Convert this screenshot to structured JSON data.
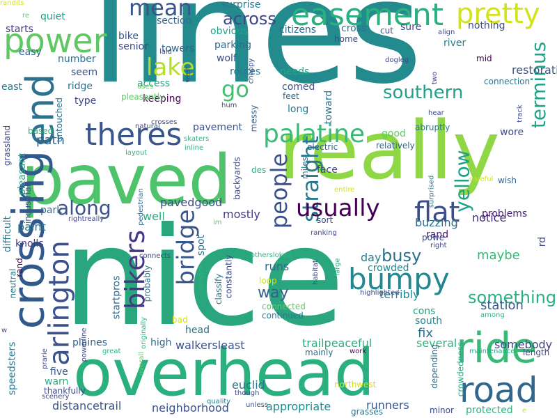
{
  "words": [
    {
      "text": "lines",
      "color": "#238a8d"
    },
    {
      "text": "nice",
      "color": "#2aa67e"
    },
    {
      "text": "really",
      "color": "#8fd744"
    },
    {
      "text": "paved",
      "color": "#4ec36b"
    },
    {
      "text": "overhead",
      "color": "#2ab07f"
    },
    {
      "text": "crossing",
      "color": "#31598c"
    },
    {
      "text": "easement",
      "color": "#2ab07f"
    },
    {
      "text": "power",
      "color": "#5ec962"
    },
    {
      "text": "pretty",
      "color": "#d2e21b"
    },
    {
      "text": "end",
      "color": "#2c718e"
    },
    {
      "text": "ride",
      "color": "#3aba76"
    },
    {
      "text": "road",
      "color": "#31668e"
    },
    {
      "text": "theres",
      "color": "#3a548c"
    },
    {
      "text": "bumpy",
      "color": "#24868e"
    },
    {
      "text": "flat",
      "color": "#3d4d8a"
    },
    {
      "text": "palatine",
      "color": "#3aba76"
    },
    {
      "text": "people",
      "color": "#3b518b"
    },
    {
      "text": "bridge",
      "color": "#39568c"
    },
    {
      "text": "bikers",
      "color": "#453781"
    },
    {
      "text": "arlington",
      "color": "#3b518b"
    },
    {
      "text": "straight",
      "color": "#2a788e"
    },
    {
      "text": "lake",
      "color": "#b5de2b"
    },
    {
      "text": "mean",
      "color": "#39568c"
    },
    {
      "text": "southern",
      "color": "#1fa188"
    },
    {
      "text": "terminus",
      "color": "#20a386"
    },
    {
      "text": "usually",
      "color": "#440154"
    },
    {
      "text": "along",
      "color": "#3b528b"
    },
    {
      "text": "go",
      "color": "#44bf70"
    },
    {
      "text": "across",
      "color": "#3e4989"
    },
    {
      "text": "yellow",
      "color": "#1fa088"
    },
    {
      "text": "something",
      "color": "#2ab07f"
    },
    {
      "text": "busy",
      "color": "#2d708e"
    },
    {
      "text": "way",
      "color": "#355f8d"
    },
    {
      "text": "paint",
      "color": "#2a778e"
    },
    {
      "text": "path",
      "color": "#34618d"
    },
    {
      "text": "well",
      "color": "#29af7f"
    },
    {
      "text": "maybe",
      "color": "#37b878"
    },
    {
      "text": "fix",
      "color": "#2c728e"
    },
    {
      "text": "station",
      "color": "#365c8d"
    },
    {
      "text": "pavedgood",
      "color": "#3e4989"
    },
    {
      "text": "mostly",
      "color": "#443983"
    },
    {
      "text": "notice",
      "color": "#472d7b"
    },
    {
      "text": "problems",
      "color": "#482173"
    },
    {
      "text": "buzzing",
      "color": "#2e6e8e"
    },
    {
      "text": "rand",
      "color": "#481b6d"
    },
    {
      "text": "day",
      "color": "#277f8e"
    },
    {
      "text": "runs",
      "color": "#31688e"
    },
    {
      "text": "crowded",
      "color": "#24868e"
    },
    {
      "text": "terribly",
      "color": "#23898e"
    },
    {
      "text": "cons",
      "color": "#20a486"
    },
    {
      "text": "south",
      "color": "#26828e"
    },
    {
      "text": "several",
      "color": "#2fb47c"
    },
    {
      "text": "trailpeaceful",
      "color": "#29af7f"
    },
    {
      "text": "somebody",
      "color": "#404688"
    },
    {
      "text": "walkersleast",
      "color": "#3b528b"
    },
    {
      "text": "neighborhood",
      "color": "#3b528b"
    },
    {
      "text": "appropriate",
      "color": "#238a8d"
    },
    {
      "text": "distancetrail",
      "color": "#39558c"
    },
    {
      "text": "runners",
      "color": "#39568c"
    },
    {
      "text": "euclid",
      "color": "#2c718e"
    },
    {
      "text": "plaines",
      "color": "#33638d"
    },
    {
      "text": "high",
      "color": "#31688e"
    },
    {
      "text": "head",
      "color": "#2c728e"
    },
    {
      "text": "five",
      "color": "#3a548c"
    },
    {
      "text": "warn",
      "color": "#29af7f"
    },
    {
      "text": "speedsters",
      "color": "#2a788e"
    },
    {
      "text": "startpros",
      "color": "#31688e"
    },
    {
      "text": "knolls",
      "color": "#453882"
    },
    {
      "text": "park",
      "color": "#31688e"
    },
    {
      "text": "difficult",
      "color": "#2a788e"
    },
    {
      "text": "pleasant",
      "color": "#22a884"
    },
    {
      "text": "industrial",
      "color": "#3b518b"
    },
    {
      "text": "grassland",
      "color": "#3e4989"
    },
    {
      "text": "east",
      "color": "#2c728e"
    },
    {
      "text": "easy",
      "color": "#33638d"
    },
    {
      "text": "starts",
      "color": "#443983"
    },
    {
      "text": "quiet",
      "color": "#1fa088"
    },
    {
      "text": "number",
      "color": "#2d708e"
    },
    {
      "text": "seem",
      "color": "#3b518b"
    },
    {
      "text": "ridge",
      "color": "#2c728e"
    },
    {
      "text": "type",
      "color": "#404688"
    },
    {
      "text": "untouched",
      "color": "#2d708e"
    },
    {
      "text": "bike",
      "color": "#39568c"
    },
    {
      "text": "senior",
      "color": "#3e4989"
    },
    {
      "text": "towers",
      "color": "#33638d"
    },
    {
      "text": "section",
      "color": "#31688e"
    },
    {
      "text": "surprise",
      "color": "#2a788e"
    },
    {
      "text": "obvious",
      "color": "#20a486"
    },
    {
      "text": "parking",
      "color": "#31688e"
    },
    {
      "text": "wolf",
      "color": "#3e4989"
    },
    {
      "text": "routes",
      "color": "#2a788e"
    },
    {
      "text": "access",
      "color": "#22a884"
    },
    {
      "text": "keeping",
      "color": "#440154"
    },
    {
      "text": "pavement",
      "color": "#3b528b"
    },
    {
      "text": "citizens",
      "color": "#31688e"
    },
    {
      "text": "cross",
      "color": "#2c728e"
    },
    {
      "text": "cut",
      "color": "#3e4989"
    },
    {
      "text": "sure",
      "color": "#3e4989"
    },
    {
      "text": "nothing",
      "color": "#3e4989"
    },
    {
      "text": "needs",
      "color": "#22a884"
    },
    {
      "text": "comed",
      "color": "#3b528b"
    },
    {
      "text": "toward",
      "color": "#2c728e"
    },
    {
      "text": "long",
      "color": "#2a788e"
    },
    {
      "text": "feet",
      "color": "#31688e"
    },
    {
      "text": "good",
      "color": "#5ec962"
    },
    {
      "text": "abruptly",
      "color": "#2a788e"
    },
    {
      "text": "relatively",
      "color": "#33638d"
    },
    {
      "text": "electric",
      "color": "#33638d"
    },
    {
      "text": "miles",
      "color": "#2a788e"
    },
    {
      "text": "face",
      "color": "#3e4989"
    },
    {
      "text": "wish",
      "color": "#33638d"
    },
    {
      "text": "wore",
      "color": "#3e4989"
    },
    {
      "text": "sort",
      "color": "#3e4989"
    },
    {
      "text": "restoration",
      "color": "#3b528b"
    },
    {
      "text": "mid",
      "color": "#440154"
    },
    {
      "text": "connection",
      "color": "#2c728e"
    },
    {
      "text": "home",
      "color": "#3e4989"
    },
    {
      "text": "river",
      "color": "#2a788e"
    },
    {
      "text": "des",
      "color": "#2fb47c"
    },
    {
      "text": "messy",
      "color": "#33638d"
    },
    {
      "text": "backyards",
      "color": "#3e4989"
    },
    {
      "text": "spot",
      "color": "#2c728e"
    },
    {
      "text": "classify",
      "color": "#2a788e"
    },
    {
      "text": "probably",
      "color": "#2a788e"
    },
    {
      "text": "constantly",
      "color": "#3e4989"
    },
    {
      "text": "connected",
      "color": "#5ec962"
    },
    {
      "text": "large",
      "color": "#2fb47c"
    },
    {
      "text": "continued",
      "color": "#2a788e"
    },
    {
      "text": "bad",
      "color": "#d2e21b"
    },
    {
      "text": "loop",
      "color": "#d2e21b"
    },
    {
      "text": "rd",
      "color": "#3e4989"
    },
    {
      "text": "highlighted",
      "color": "#3e4989"
    },
    {
      "text": "crowdedness",
      "color": "#22a884"
    },
    {
      "text": "depending",
      "color": "#2c728e"
    },
    {
      "text": "protected",
      "color": "#2fb47c"
    },
    {
      "text": "minor",
      "color": "#3e4989"
    },
    {
      "text": "northwest",
      "color": "#d2e21b"
    },
    {
      "text": "grasses",
      "color": "#2a788e"
    },
    {
      "text": "unless",
      "color": "#3b528b"
    },
    {
      "text": "though",
      "color": "#3e4989"
    },
    {
      "text": "quality",
      "color": "#2a788e"
    },
    {
      "text": "mainly",
      "color": "#31688e"
    },
    {
      "text": "work",
      "color": "#440154"
    },
    {
      "text": "maintenance",
      "color": "#22a884"
    },
    {
      "text": "length",
      "color": "#3e4989"
    },
    {
      "text": "powe",
      "color": "#3e4989"
    },
    {
      "text": "rand",
      "color": "#440154"
    },
    {
      "text": "neutral",
      "color": "#2a788e"
    },
    {
      "text": "thankfully",
      "color": "#3e4989"
    },
    {
      "text": "scenery",
      "color": "#3e4989"
    },
    {
      "text": "prarie",
      "color": "#3e4989"
    },
    {
      "text": "great",
      "color": "#2fb47c"
    },
    {
      "text": "overall",
      "color": "#5ec962"
    },
    {
      "text": "originally",
      "color": "#2fb47c"
    },
    {
      "text": "powerline",
      "color": "#3e4989"
    },
    {
      "text": "rightreally",
      "color": "#3e4989"
    },
    {
      "text": "pedestrian",
      "color": "#31688e"
    },
    {
      "text": "layout",
      "color": "#2fb47c"
    },
    {
      "text": "inline",
      "color": "#2fb47c"
    },
    {
      "text": "skaters",
      "color": "#2fb47c"
    },
    {
      "text": "natural",
      "color": "#3e4989"
    },
    {
      "text": "based",
      "color": "#2fb47c"
    },
    {
      "text": "crosses",
      "color": "#3e4989"
    },
    {
      "text": "hum",
      "color": "#3e4989"
    },
    {
      "text": "choppy",
      "color": "#3e4989"
    },
    {
      "text": "dogleg",
      "color": "#3e4989"
    },
    {
      "text": "laid",
      "color": "#3e4989"
    },
    {
      "text": "uses",
      "color": "#5ec962"
    },
    {
      "text": "west",
      "color": "#3e4989"
    },
    {
      "text": "pleasantly",
      "color": "#5ec962"
    },
    {
      "text": "re",
      "color": "#5ec962"
    },
    {
      "text": "align",
      "color": "#3e4989"
    },
    {
      "text": "two",
      "color": "#3e4989"
    },
    {
      "text": "hear",
      "color": "#3e4989"
    },
    {
      "text": "track",
      "color": "#3e4989"
    },
    {
      "text": "surprised",
      "color": "#2a788e"
    },
    {
      "text": "careful",
      "color": "#d2e21b"
    },
    {
      "text": "entire",
      "color": "#d2e21b"
    },
    {
      "text": "ranking",
      "color": "#3e4989"
    },
    {
      "text": "right",
      "color": "#3e4989"
    },
    {
      "text": "habitat",
      "color": "#3e4989"
    },
    {
      "text": "im",
      "color": "#5ec962"
    },
    {
      "text": "service",
      "color": "#2fb47c"
    },
    {
      "text": "otherslokay",
      "color": "#2fb47c"
    },
    {
      "text": "among",
      "color": "#2fb47c"
    },
    {
      "text": "connects",
      "color": "#3e4989"
    },
    {
      "text": "w",
      "color": "#3e4989"
    },
    {
      "text": "e",
      "color": "#d2e21b"
    },
    {
      "text": "randits",
      "color": "#d2e21b"
    }
  ]
}
